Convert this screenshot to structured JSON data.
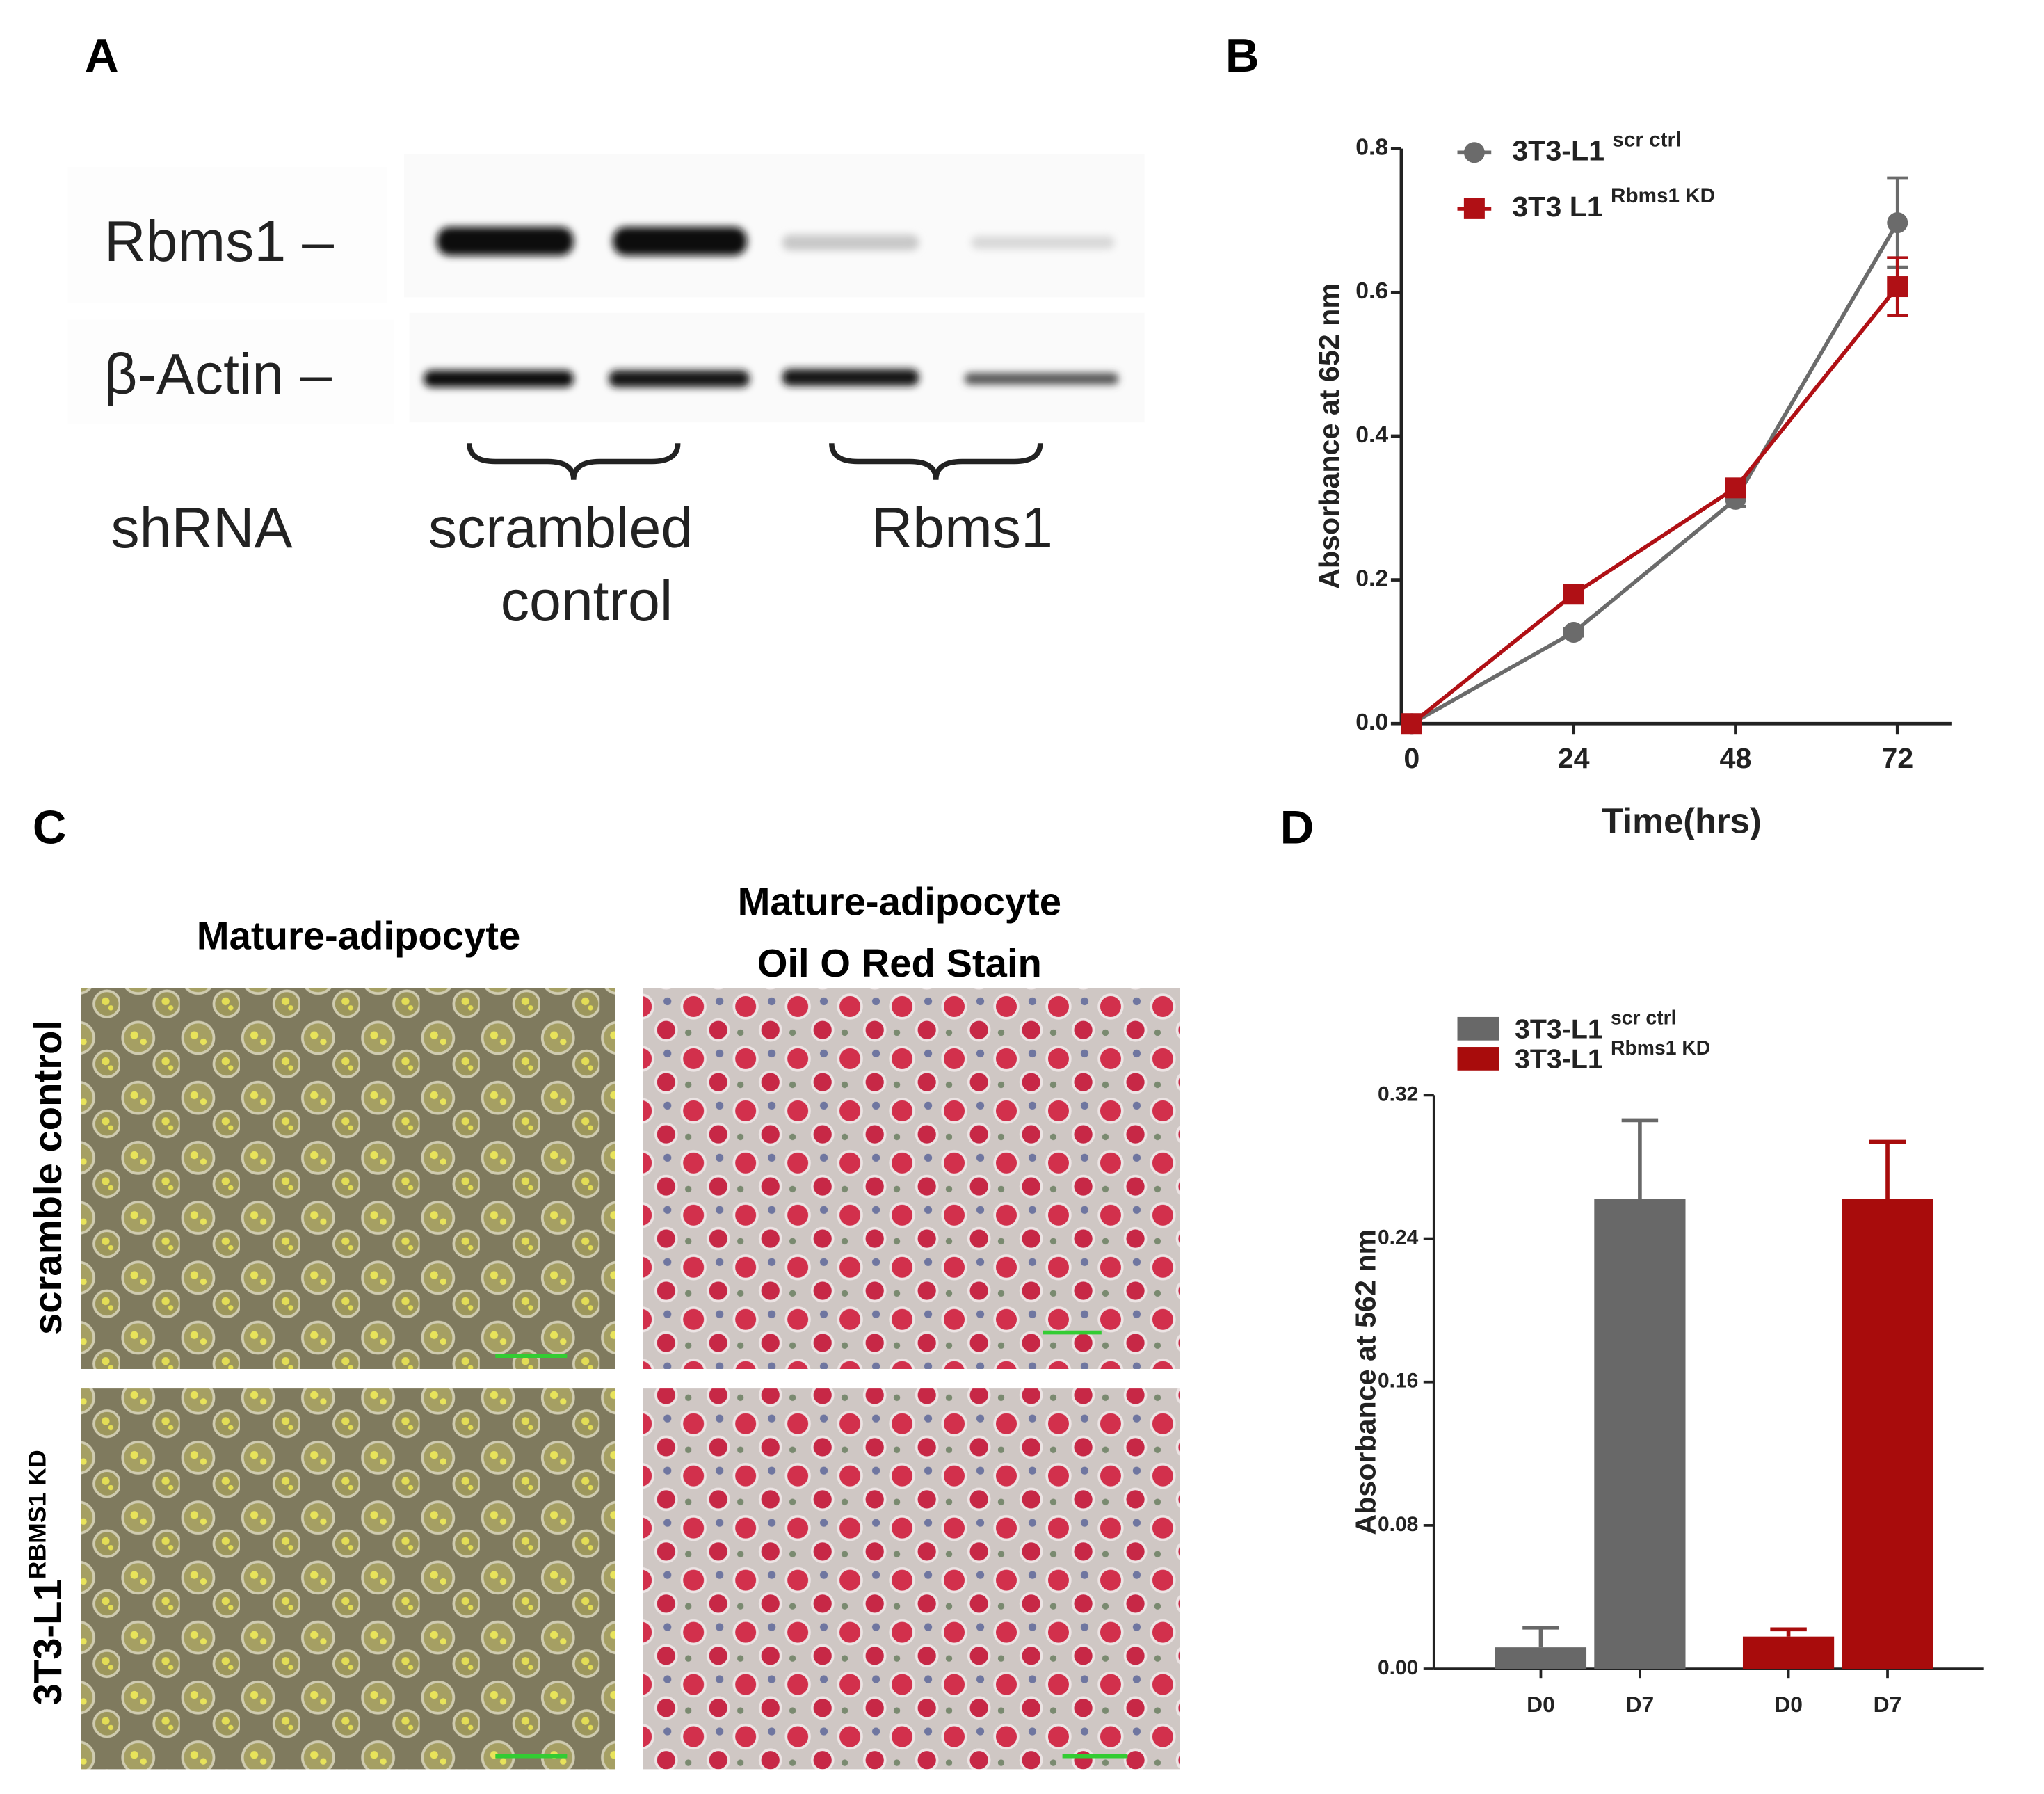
{
  "panel_labels": [
    "A",
    "B",
    "C",
    "D"
  ],
  "blot": {
    "proteins": [
      "Rbms1 –",
      "β-Actin –"
    ],
    "row_label": "shRNA",
    "groups": [
      [
        "scrambled",
        "control"
      ],
      [
        "Rbms1"
      ]
    ]
  },
  "staining": {
    "columns": [
      [
        "Mature-adipocyte"
      ],
      [
        "Mature-adipocyte",
        "Oil O Red Stain"
      ]
    ],
    "rows": [
      {
        "name": "scramble control"
      },
      {
        "name": "3T3-L1",
        "superscript": "RBMS1 KD"
      }
    ]
  },
  "chart_data": [
    {
      "type": "line",
      "xlabel": "Time(hrs)",
      "ylabel": "Absorbance at 652 nm",
      "x": [
        0,
        24,
        48,
        72
      ],
      "xlim": [
        0,
        80
      ],
      "xticks": [
        0,
        24,
        48,
        72
      ],
      "ylim": [
        0,
        0.8
      ],
      "yticks": [
        {
          "value": 0,
          "label": "0.0"
        },
        0.2,
        0.4,
        0.6,
        0.8
      ],
      "series": [
        {
          "name": "3T3-L1",
          "superscript": "scr ctrl",
          "color": "#6b6b6b",
          "marker": "circle",
          "values": [
            0,
            0.127,
            0.312,
            0.697
          ],
          "errors": [
            0,
            0.005,
            0.01,
            0.062
          ]
        },
        {
          "name": "3T3 L1",
          "superscript": "Rbms1 KD",
          "color": "#b01015",
          "marker": "square",
          "values": [
            0,
            0.18,
            0.328,
            0.608
          ],
          "errors": [
            0,
            0.01,
            0.01,
            0.04
          ]
        }
      ]
    },
    {
      "type": "bar",
      "ylabel": "Absorbance at 562 nm",
      "categories": [
        "D0",
        "D7"
      ],
      "ylim": [
        0,
        0.32
      ],
      "yticks": [
        {
          "value": 0,
          "label": "0.00"
        },
        {
          "value": 0.08,
          "label": "0.08"
        },
        {
          "value": 0.16,
          "label": "0.16"
        },
        {
          "value": 0.24,
          "label": "0.24"
        },
        {
          "value": 0.32,
          "label": "0.32"
        }
      ],
      "series": [
        {
          "name": "3T3-L1",
          "superscript": "scr ctrl",
          "color": "#686868",
          "values": [
            0.012,
            0.262
          ],
          "errors": [
            0.011,
            0.044
          ]
        },
        {
          "name": "3T3-L1",
          "superscript": "Rbms1 KD",
          "color": "#a80c0c",
          "values": [
            0.018,
            0.262
          ],
          "errors": [
            0.004,
            0.032
          ]
        }
      ]
    }
  ]
}
